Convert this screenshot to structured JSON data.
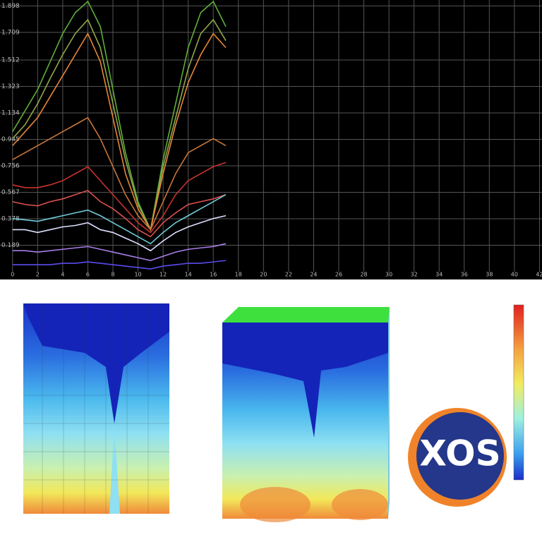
{
  "chart_data": {
    "type": "line",
    "x": [
      0,
      1,
      2,
      3,
      4,
      5,
      6,
      7,
      8,
      9,
      10,
      11,
      12,
      13,
      14,
      15,
      16,
      17
    ],
    "series": [
      {
        "color": "#5fae3a",
        "values": [
          1.0,
          1.15,
          1.3,
          1.5,
          1.7,
          1.85,
          1.93,
          1.75,
          1.3,
          0.85,
          0.5,
          0.3,
          0.8,
          1.2,
          1.6,
          1.85,
          1.93,
          1.75
        ]
      },
      {
        "color": "#8fa84a",
        "values": [
          0.95,
          1.05,
          1.2,
          1.38,
          1.55,
          1.7,
          1.8,
          1.6,
          1.2,
          0.8,
          0.48,
          0.3,
          0.75,
          1.1,
          1.45,
          1.7,
          1.8,
          1.65
        ]
      },
      {
        "color": "#e8873a",
        "values": [
          0.9,
          1.0,
          1.1,
          1.25,
          1.4,
          1.55,
          1.7,
          1.5,
          1.1,
          0.7,
          0.45,
          0.3,
          0.7,
          1.05,
          1.35,
          1.55,
          1.7,
          1.6
        ]
      },
      {
        "color": "#c9763a",
        "values": [
          0.8,
          0.85,
          0.9,
          0.95,
          1.0,
          1.05,
          1.1,
          0.95,
          0.75,
          0.55,
          0.4,
          0.3,
          0.5,
          0.7,
          0.85,
          0.9,
          0.95,
          0.9
        ]
      },
      {
        "color": "#c8332e",
        "values": [
          0.62,
          0.6,
          0.6,
          0.62,
          0.65,
          0.7,
          0.75,
          0.65,
          0.55,
          0.45,
          0.35,
          0.28,
          0.4,
          0.55,
          0.65,
          0.7,
          0.75,
          0.78
        ]
      },
      {
        "color": "#e05050",
        "values": [
          0.5,
          0.48,
          0.47,
          0.5,
          0.52,
          0.55,
          0.58,
          0.5,
          0.45,
          0.38,
          0.3,
          0.25,
          0.35,
          0.42,
          0.48,
          0.5,
          0.52,
          0.55
        ]
      },
      {
        "color": "#6fcbd8",
        "values": [
          0.38,
          0.37,
          0.36,
          0.38,
          0.4,
          0.42,
          0.44,
          0.4,
          0.35,
          0.3,
          0.25,
          0.2,
          0.28,
          0.35,
          0.4,
          0.45,
          0.5,
          0.55
        ]
      },
      {
        "color": "#dde0ff",
        "values": [
          0.3,
          0.3,
          0.28,
          0.3,
          0.32,
          0.33,
          0.35,
          0.3,
          0.28,
          0.24,
          0.2,
          0.15,
          0.22,
          0.28,
          0.32,
          0.35,
          0.38,
          0.4
        ]
      },
      {
        "color": "#a77ee8",
        "values": [
          0.15,
          0.15,
          0.14,
          0.15,
          0.16,
          0.17,
          0.18,
          0.16,
          0.14,
          0.12,
          0.1,
          0.08,
          0.11,
          0.14,
          0.16,
          0.17,
          0.18,
          0.2
        ]
      },
      {
        "color": "#5a4cf0",
        "values": [
          0.05,
          0.05,
          0.05,
          0.05,
          0.06,
          0.06,
          0.07,
          0.06,
          0.05,
          0.04,
          0.03,
          0.02,
          0.04,
          0.05,
          0.06,
          0.06,
          0.07,
          0.08
        ]
      }
    ],
    "xlim": [
      -1,
      42.2
    ],
    "ylim": [
      0,
      1.94
    ],
    "xticks": [
      0,
      2,
      4,
      6,
      8,
      10,
      12,
      14,
      16,
      18,
      20,
      22,
      24,
      26,
      28,
      30,
      32,
      34,
      36,
      38,
      40,
      42
    ],
    "yticks": [
      0.189,
      0.378,
      0.567,
      0.756,
      0.945,
      1.134,
      1.323,
      1.512,
      1.709,
      1.898
    ],
    "grid": true
  },
  "logo": {
    "text": "XOS"
  }
}
